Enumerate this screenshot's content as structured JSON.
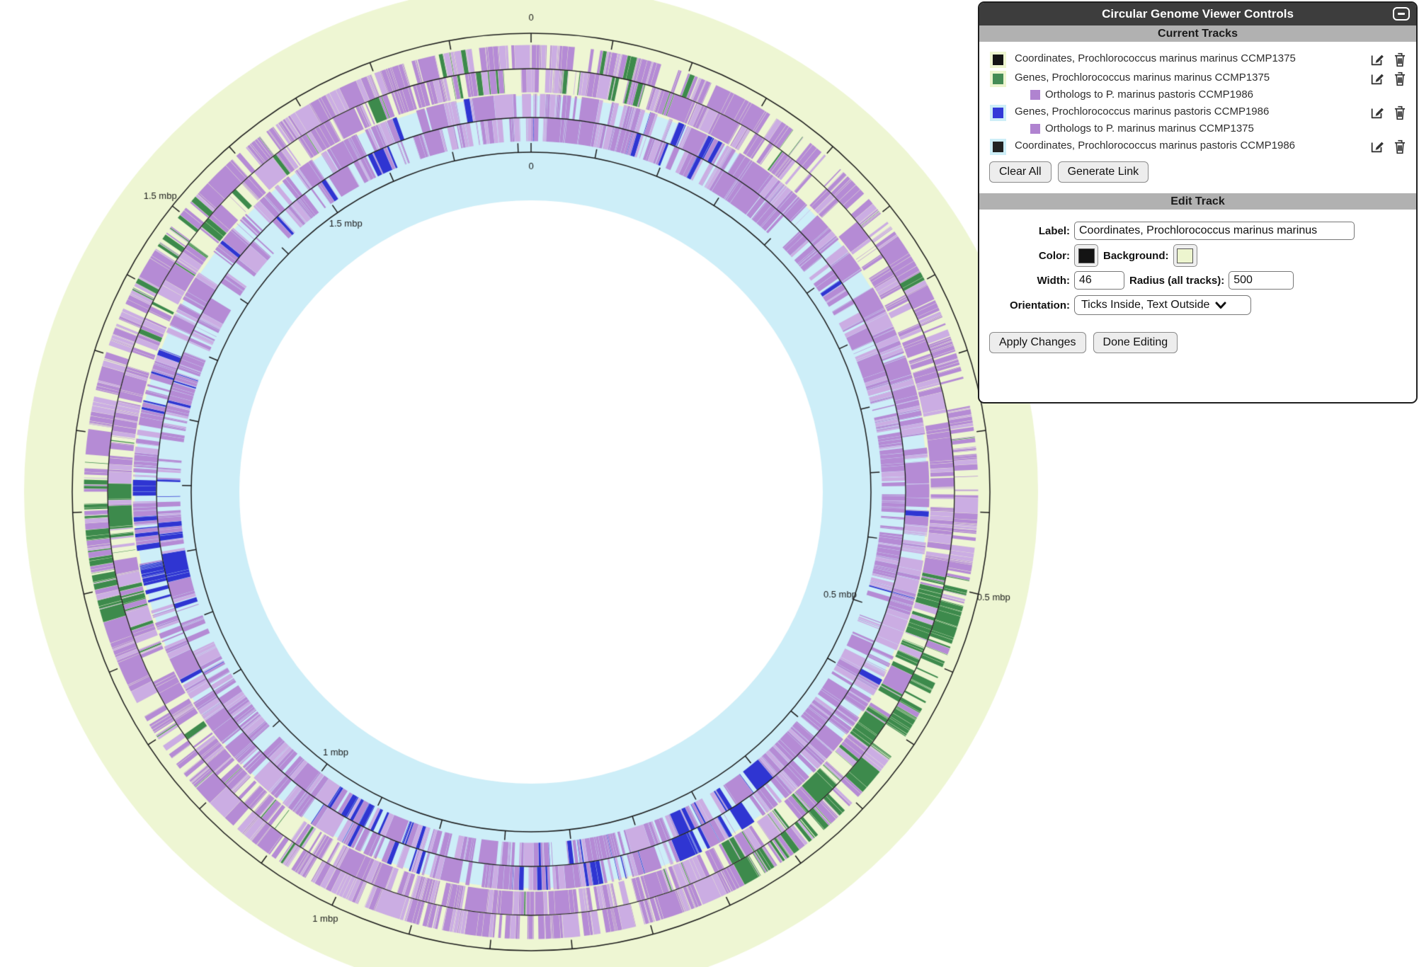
{
  "window": {
    "title": "Circular Genome Viewer Controls"
  },
  "panel": {
    "sections": {
      "current_tracks": "Current Tracks",
      "edit_track": "Edit Track"
    },
    "tracks": [
      {
        "label": "Coordinates, Prochlorococcus marinus marinus CCMP1375",
        "swatch_color": "#141414",
        "swatch_bg": "#edf5cf"
      },
      {
        "label": "Genes, Prochlorococcus marinus marinus CCMP1375",
        "swatch_color": "#458c55",
        "swatch_bg": "#edf5cf",
        "sub": {
          "label": "Orthologs to P. marinus pastoris CCMP1986",
          "swatch_color": "#b083d0"
        }
      },
      {
        "label": "Genes, Prochlorococcus marinus pastoris CCMP1986",
        "swatch_color": "#3339d8",
        "swatch_bg": "#cdeef7",
        "sub": {
          "label": "Orthologs to P. marinus marinus CCMP1375",
          "swatch_color": "#b083d0"
        }
      },
      {
        "label": "Coordinates, Prochlorococcus marinus pastoris CCMP1986",
        "swatch_color": "#222222",
        "swatch_bg": "#cdeef7"
      }
    ],
    "buttons": {
      "clear_all": "Clear All",
      "generate_link": "Generate Link",
      "apply": "Apply Changes",
      "done": "Done Editing"
    },
    "edit_form": {
      "label_label": "Label:",
      "label_value": "Coordinates, Prochlorococcus marinus marinus",
      "color_label": "Color:",
      "color_value": "#141414",
      "background_label": "Background:",
      "background_value": "#edf5cf",
      "width_label": "Width:",
      "width_value": "46",
      "radius_label": "Radius (all tracks):",
      "radius_value": "500",
      "orientation_label": "Orientation:",
      "orientation_value": "Ticks Inside, Text Outside"
    },
    "icons": {
      "edit": "edit-icon (pencil on square)",
      "trash": "trash-icon (trash can)",
      "minimize": "minimize-icon (minus in rounded square)",
      "dropdown": "chevron-down-icon"
    }
  },
  "chart_data": {
    "type": "circular_genome",
    "rings": [
      {
        "role": "coordinates",
        "name": "Coordinates, Prochlorococcus marinus marinus CCMP1375",
        "length_mbp": 1.75,
        "tick_interval_mbp": 0.05,
        "orientation": "Ticks Inside, Text Outside",
        "background": "#eef6d3",
        "line_color": "#1a1a1a",
        "labels": [
          {
            "mbp": 0,
            "text": "0"
          },
          {
            "mbp": 0.5,
            "text": "0.5 mbp"
          },
          {
            "mbp": 1.0,
            "text": "1 mbp"
          },
          {
            "mbp": 1.5,
            "text": "1.5 mbp"
          }
        ]
      },
      {
        "role": "genes",
        "name": "Genes, Prochlorococcus marinus marinus CCMP1375",
        "gene_color": "#3d8a4c",
        "ortholog_color": "#b58bd5",
        "ortholog_color_light": "#cbadе3",
        "ortholog_name": "Orthologs to P. marinus pastoris CCMP1986",
        "background": "#eef6d3"
      },
      {
        "role": "genes",
        "name": "Genes, Prochlorococcus marinus pastoris CCMP1986",
        "gene_color": "#2f35d2",
        "ortholog_color": "#b58bd5",
        "ortholog_color_light": "#cbade3",
        "ortholog_name": "Orthologs to P. marinus marinus CCMP1375",
        "background": "#cdeef8"
      },
      {
        "role": "coordinates",
        "name": "Coordinates, Prochlorococcus marinus pastoris CCMP1986",
        "length_mbp": 1.66,
        "tick_interval_mbp": 0.05,
        "orientation": "Ticks Outside, Text Inside",
        "background": "#cdeef8",
        "line_color": "#1a1a1a",
        "labels": [
          {
            "mbp": 0,
            "text": "0"
          },
          {
            "mbp": 0.5,
            "text": "0.5 mbp"
          },
          {
            "mbp": 1.0,
            "text": "1 mbp"
          },
          {
            "mbp": 1.5,
            "text": "1.5 mbp"
          }
        ]
      }
    ],
    "colors": {
      "ortholog": "#b58bd5",
      "ortholog_light": "#cbade3",
      "outer_gene_accent": "#3d8a4c",
      "inner_gene_accent": "#2f35d2",
      "line": "#1a1a1a",
      "center": "#ffffff"
    },
    "render": {
      "seed": 1337,
      "coverage": 0.82,
      "light_variant_prob": 0.3,
      "accent_base_prob": 0.035,
      "outer_accent_zones": [
        [
          100,
          127,
          0.8
        ],
        [
          127,
          152,
          0.42
        ],
        [
          253,
          276,
          0.5
        ],
        [
          296,
          316,
          0.38
        ],
        [
          4,
          22,
          0.15
        ],
        [
          348,
          358,
          0.2
        ],
        [
          212,
          226,
          0.12
        ]
      ],
      "inner_accent_zones": [
        [
          143,
          158,
          0.45
        ],
        [
          166,
          180,
          0.3
        ],
        [
          196,
          214,
          0.42
        ],
        [
          252,
          272,
          0.5
        ],
        [
          282,
          292,
          0.3
        ],
        [
          16,
          30,
          0.18
        ],
        [
          330,
          340,
          0.12
        ]
      ]
    }
  }
}
